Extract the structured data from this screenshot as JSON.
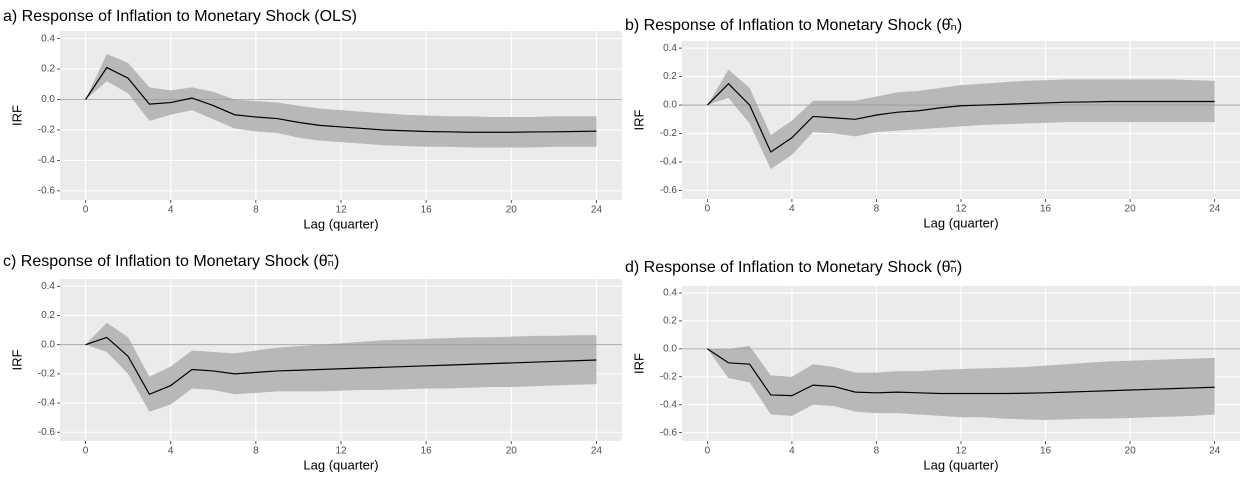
{
  "chart_data": [
    {
      "type": "line",
      "title": "a) Response of Inflation to Monetary Shock (OLS)",
      "xlabel": "Lag (quarter)",
      "ylabel": "IRF",
      "x": [
        0,
        1,
        2,
        3,
        4,
        5,
        6,
        7,
        8,
        9,
        10,
        11,
        12,
        13,
        14,
        15,
        16,
        17,
        18,
        19,
        20,
        21,
        22,
        23,
        24
      ],
      "values": [
        0,
        0.21,
        0.14,
        -0.03,
        -0.02,
        0.01,
        -0.04,
        -0.1,
        -0.115,
        -0.125,
        -0.15,
        -0.17,
        -0.18,
        -0.19,
        -0.2,
        -0.205,
        -0.21,
        -0.212,
        -0.215,
        -0.215,
        -0.215,
        -0.213,
        -0.212,
        -0.21,
        -0.208
      ],
      "upper": [
        0,
        0.3,
        0.24,
        0.08,
        0.06,
        0.08,
        0.05,
        0.0,
        -0.01,
        -0.02,
        -0.04,
        -0.06,
        -0.07,
        -0.08,
        -0.09,
        -0.1,
        -0.105,
        -0.11,
        -0.11,
        -0.115,
        -0.115,
        -0.115,
        -0.11,
        -0.11,
        -0.11
      ],
      "lower": [
        0,
        0.12,
        0.04,
        -0.14,
        -0.1,
        -0.07,
        -0.13,
        -0.19,
        -0.21,
        -0.22,
        -0.25,
        -0.27,
        -0.28,
        -0.29,
        -0.3,
        -0.305,
        -0.31,
        -0.31,
        -0.315,
        -0.315,
        -0.315,
        -0.315,
        -0.31,
        -0.31,
        -0.31
      ],
      "color": "#000000",
      "band_color": "#b8b8b8",
      "hline": 0,
      "xlim": [
        -1.2,
        25.2
      ],
      "xticks": [
        0,
        4,
        8,
        12,
        16,
        20,
        24
      ],
      "ylim": [
        -0.66,
        0.45
      ],
      "yticks": [
        0.4,
        0.2,
        {
          "value": 0,
          "label": "0.0"
        },
        -0.2,
        -0.4,
        -0.6
      ],
      "grid": true
    },
    {
      "type": "line",
      "title": "b) Response of Inflation to Monetary Shock (θ̂ₙ)",
      "xlabel": "Lag (quarter)",
      "ylabel": "IRF",
      "x": [
        0,
        1,
        2,
        3,
        4,
        5,
        6,
        7,
        8,
        9,
        10,
        11,
        12,
        13,
        14,
        15,
        16,
        17,
        18,
        19,
        20,
        21,
        22,
        23,
        24
      ],
      "values": [
        0,
        0.15,
        0.0,
        -0.33,
        -0.23,
        -0.08,
        -0.09,
        -0.1,
        -0.07,
        -0.05,
        -0.04,
        -0.02,
        -0.005,
        0.0,
        0.005,
        0.01,
        0.015,
        0.02,
        0.022,
        0.025,
        0.025,
        0.025,
        0.025,
        0.025,
        0.025
      ],
      "upper": [
        0,
        0.25,
        0.12,
        -0.21,
        -0.11,
        0.03,
        0.03,
        0.03,
        0.06,
        0.09,
        0.1,
        0.12,
        0.14,
        0.15,
        0.16,
        0.17,
        0.175,
        0.18,
        0.18,
        0.18,
        0.18,
        0.18,
        0.18,
        0.175,
        0.17
      ],
      "lower": [
        0,
        0.05,
        -0.13,
        -0.45,
        -0.35,
        -0.19,
        -0.2,
        -0.22,
        -0.19,
        -0.18,
        -0.17,
        -0.16,
        -0.15,
        -0.14,
        -0.135,
        -0.13,
        -0.125,
        -0.12,
        -0.12,
        -0.12,
        -0.12,
        -0.12,
        -0.12,
        -0.12,
        -0.12
      ],
      "color": "#000000",
      "band_color": "#b8b8b8",
      "hline": 0,
      "xlim": [
        -1.2,
        25.2
      ],
      "xticks": [
        0,
        4,
        8,
        12,
        16,
        20,
        24
      ],
      "ylim": [
        -0.66,
        0.45
      ],
      "yticks": [
        0.4,
        0.2,
        {
          "value": 0,
          "label": "0.0"
        },
        -0.2,
        -0.4,
        -0.6
      ],
      "grid": true
    },
    {
      "type": "line",
      "title": "c) Response of Inflation to Monetary Shock (θ̃ₙ)",
      "xlabel": "Lag (quarter)",
      "ylabel": "IRF",
      "x": [
        0,
        1,
        2,
        3,
        4,
        5,
        6,
        7,
        8,
        9,
        10,
        11,
        12,
        13,
        14,
        15,
        16,
        17,
        18,
        19,
        20,
        21,
        22,
        23,
        24
      ],
      "values": [
        0,
        0.05,
        -0.08,
        -0.34,
        -0.28,
        -0.17,
        -0.18,
        -0.2,
        -0.19,
        -0.18,
        -0.175,
        -0.17,
        -0.165,
        -0.16,
        -0.155,
        -0.15,
        -0.145,
        -0.14,
        -0.135,
        -0.13,
        -0.125,
        -0.12,
        -0.115,
        -0.11,
        -0.105
      ],
      "upper": [
        0,
        0.15,
        0.05,
        -0.22,
        -0.15,
        -0.04,
        -0.05,
        -0.06,
        -0.04,
        -0.02,
        -0.01,
        0.0,
        0.01,
        0.02,
        0.03,
        0.035,
        0.04,
        0.045,
        0.05,
        0.05,
        0.055,
        0.06,
        0.06,
        0.065,
        0.065
      ],
      "lower": [
        0,
        -0.05,
        -0.2,
        -0.46,
        -0.41,
        -0.3,
        -0.31,
        -0.34,
        -0.33,
        -0.32,
        -0.32,
        -0.32,
        -0.315,
        -0.31,
        -0.31,
        -0.305,
        -0.3,
        -0.3,
        -0.295,
        -0.29,
        -0.29,
        -0.285,
        -0.28,
        -0.275,
        -0.27
      ],
      "color": "#000000",
      "band_color": "#b8b8b8",
      "hline": 0,
      "xlim": [
        -1.2,
        25.2
      ],
      "xticks": [
        0,
        4,
        8,
        12,
        16,
        20,
        24
      ],
      "ylim": [
        -0.66,
        0.45
      ],
      "yticks": [
        0.4,
        0.2,
        {
          "value": 0,
          "label": "0.0"
        },
        -0.2,
        -0.4,
        -0.6
      ],
      "grid": true
    },
    {
      "type": "line",
      "title": "d) Response of Inflation to Monetary Shock (θ̃̃ₙ)",
      "xlabel": "Lag (quarter)",
      "ylabel": "IRF",
      "x": [
        0,
        1,
        2,
        3,
        4,
        5,
        6,
        7,
        8,
        9,
        10,
        11,
        12,
        13,
        14,
        15,
        16,
        17,
        18,
        19,
        20,
        21,
        22,
        23,
        24
      ],
      "values": [
        0,
        -0.1,
        -0.11,
        -0.33,
        -0.335,
        -0.26,
        -0.27,
        -0.31,
        -0.315,
        -0.31,
        -0.315,
        -0.32,
        -0.32,
        -0.32,
        -0.32,
        -0.318,
        -0.315,
        -0.31,
        -0.305,
        -0.3,
        -0.295,
        -0.29,
        -0.285,
        -0.28,
        -0.275
      ],
      "upper": [
        0,
        0.0,
        0.02,
        -0.19,
        -0.2,
        -0.11,
        -0.13,
        -0.17,
        -0.17,
        -0.16,
        -0.16,
        -0.15,
        -0.145,
        -0.14,
        -0.135,
        -0.13,
        -0.12,
        -0.11,
        -0.1,
        -0.09,
        -0.085,
        -0.08,
        -0.075,
        -0.07,
        -0.065
      ],
      "lower": [
        0,
        -0.21,
        -0.24,
        -0.47,
        -0.48,
        -0.4,
        -0.41,
        -0.45,
        -0.46,
        -0.46,
        -0.47,
        -0.48,
        -0.49,
        -0.49,
        -0.5,
        -0.505,
        -0.51,
        -0.505,
        -0.5,
        -0.5,
        -0.495,
        -0.49,
        -0.485,
        -0.48,
        -0.47
      ],
      "color": "#000000",
      "band_color": "#b8b8b8",
      "hline": 0,
      "xlim": [
        -1.2,
        25.2
      ],
      "xticks": [
        0,
        4,
        8,
        12,
        16,
        20,
        24
      ],
      "ylim": [
        -0.66,
        0.45
      ],
      "yticks": [
        0.4,
        0.2,
        {
          "value": 0,
          "label": "0.0"
        },
        -0.2,
        -0.4,
        -0.6
      ],
      "grid": true
    }
  ]
}
